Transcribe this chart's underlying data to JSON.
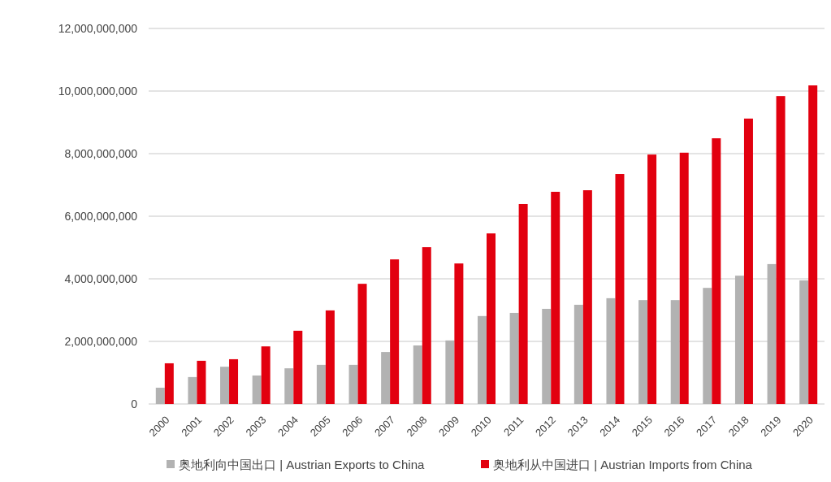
{
  "chart_data": {
    "type": "bar",
    "categories": [
      "2000",
      "2001",
      "2002",
      "2003",
      "2004",
      "2005",
      "2006",
      "2007",
      "2008",
      "2009",
      "2010",
      "2011",
      "2012",
      "2013",
      "2014",
      "2015",
      "2016",
      "2017",
      "2018",
      "2019",
      "2020"
    ],
    "series": [
      {
        "name": "奥地利向中国出口 | Austrian Exports to China",
        "color": "#b2b2b2",
        "values": [
          520000000,
          860000000,
          1190000000,
          910000000,
          1140000000,
          1250000000,
          1250000000,
          1660000000,
          1870000000,
          2030000000,
          2810000000,
          2910000000,
          3040000000,
          3170000000,
          3380000000,
          3320000000,
          3320000000,
          3710000000,
          4100000000,
          4470000000,
          3950000000
        ]
      },
      {
        "name": "奥地利从中国进口 | Austrian Imports from China",
        "color": "#e2000f",
        "values": [
          1300000000,
          1380000000,
          1430000000,
          1840000000,
          2340000000,
          2990000000,
          3840000000,
          4620000000,
          5010000000,
          4490000000,
          5450000000,
          6390000000,
          6780000000,
          6830000000,
          7350000000,
          7970000000,
          8030000000,
          8490000000,
          9120000000,
          9840000000,
          10180000000
        ]
      }
    ],
    "ylim": [
      0,
      12000000000
    ],
    "yticks": [
      {
        "value": 0,
        "label": "0"
      },
      {
        "value": 2000000000,
        "label": "2,000,000,000"
      },
      {
        "value": 4000000000,
        "label": "4,000,000,000"
      },
      {
        "value": 6000000000,
        "label": "6,000,000,000"
      },
      {
        "value": 8000000000,
        "label": "8,000,000,000"
      },
      {
        "value": 10000000000,
        "label": "10,000,000,000"
      },
      {
        "value": 12000000000,
        "label": "12,000,000,000"
      }
    ],
    "grid": "y",
    "legend": "bottom"
  }
}
